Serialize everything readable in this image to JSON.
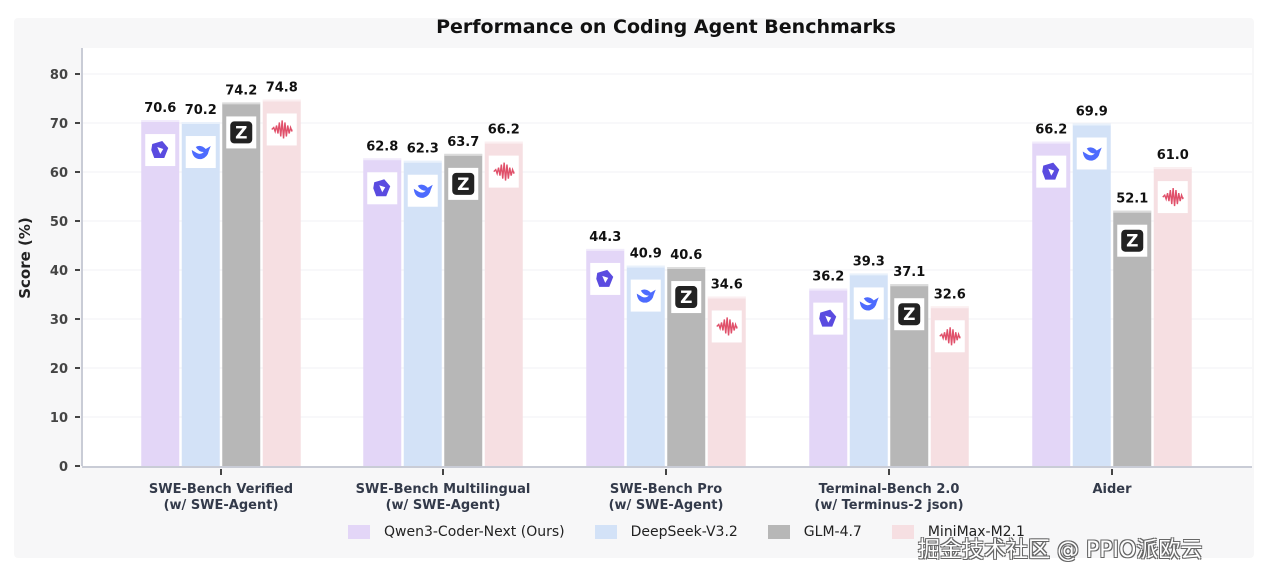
{
  "chart_data": {
    "type": "bar",
    "title": "Performance on Coding Agent Benchmarks",
    "xlabel": "",
    "ylabel": "Score (%)",
    "ylim": [
      0,
      80
    ],
    "yticks": [
      0,
      10,
      20,
      30,
      40,
      50,
      60,
      70,
      80
    ],
    "grid": true,
    "legend_position": "bottom-center",
    "categories": [
      [
        "SWE-Bench Verified",
        "(w/ SWE-Agent)"
      ],
      [
        "SWE-Bench Multilingual",
        "(w/ SWE-Agent)"
      ],
      [
        "SWE-Bench Pro",
        "(w/ SWE-Agent)"
      ],
      [
        "Terminal-Bench 2.0",
        "(w/ Terminus-2 json)"
      ],
      [
        "Aider"
      ]
    ],
    "series": [
      {
        "name": "Qwen3-Coder-Next (Ours)",
        "color": "#e3d6f7",
        "icon": "qwen-logo-icon",
        "values": [
          70.6,
          62.8,
          44.3,
          36.2,
          66.2
        ]
      },
      {
        "name": "DeepSeek-V3.2",
        "color": "#d3e2f7",
        "icon": "deepseek-whale-icon",
        "values": [
          70.2,
          62.3,
          40.9,
          39.3,
          69.9
        ]
      },
      {
        "name": "GLM-4.7",
        "color": "#b7b7b7",
        "icon": "zhipu-z-icon",
        "values": [
          74.2,
          63.7,
          40.6,
          37.1,
          52.1
        ]
      },
      {
        "name": "MiniMax-M2.1",
        "color": "#f6dfe2",
        "icon": "minimax-wave-icon",
        "values": [
          74.8,
          66.2,
          34.6,
          32.6,
          61.0
        ]
      }
    ]
  },
  "watermark": "掘金技术社区 @ PPIO派欧云"
}
